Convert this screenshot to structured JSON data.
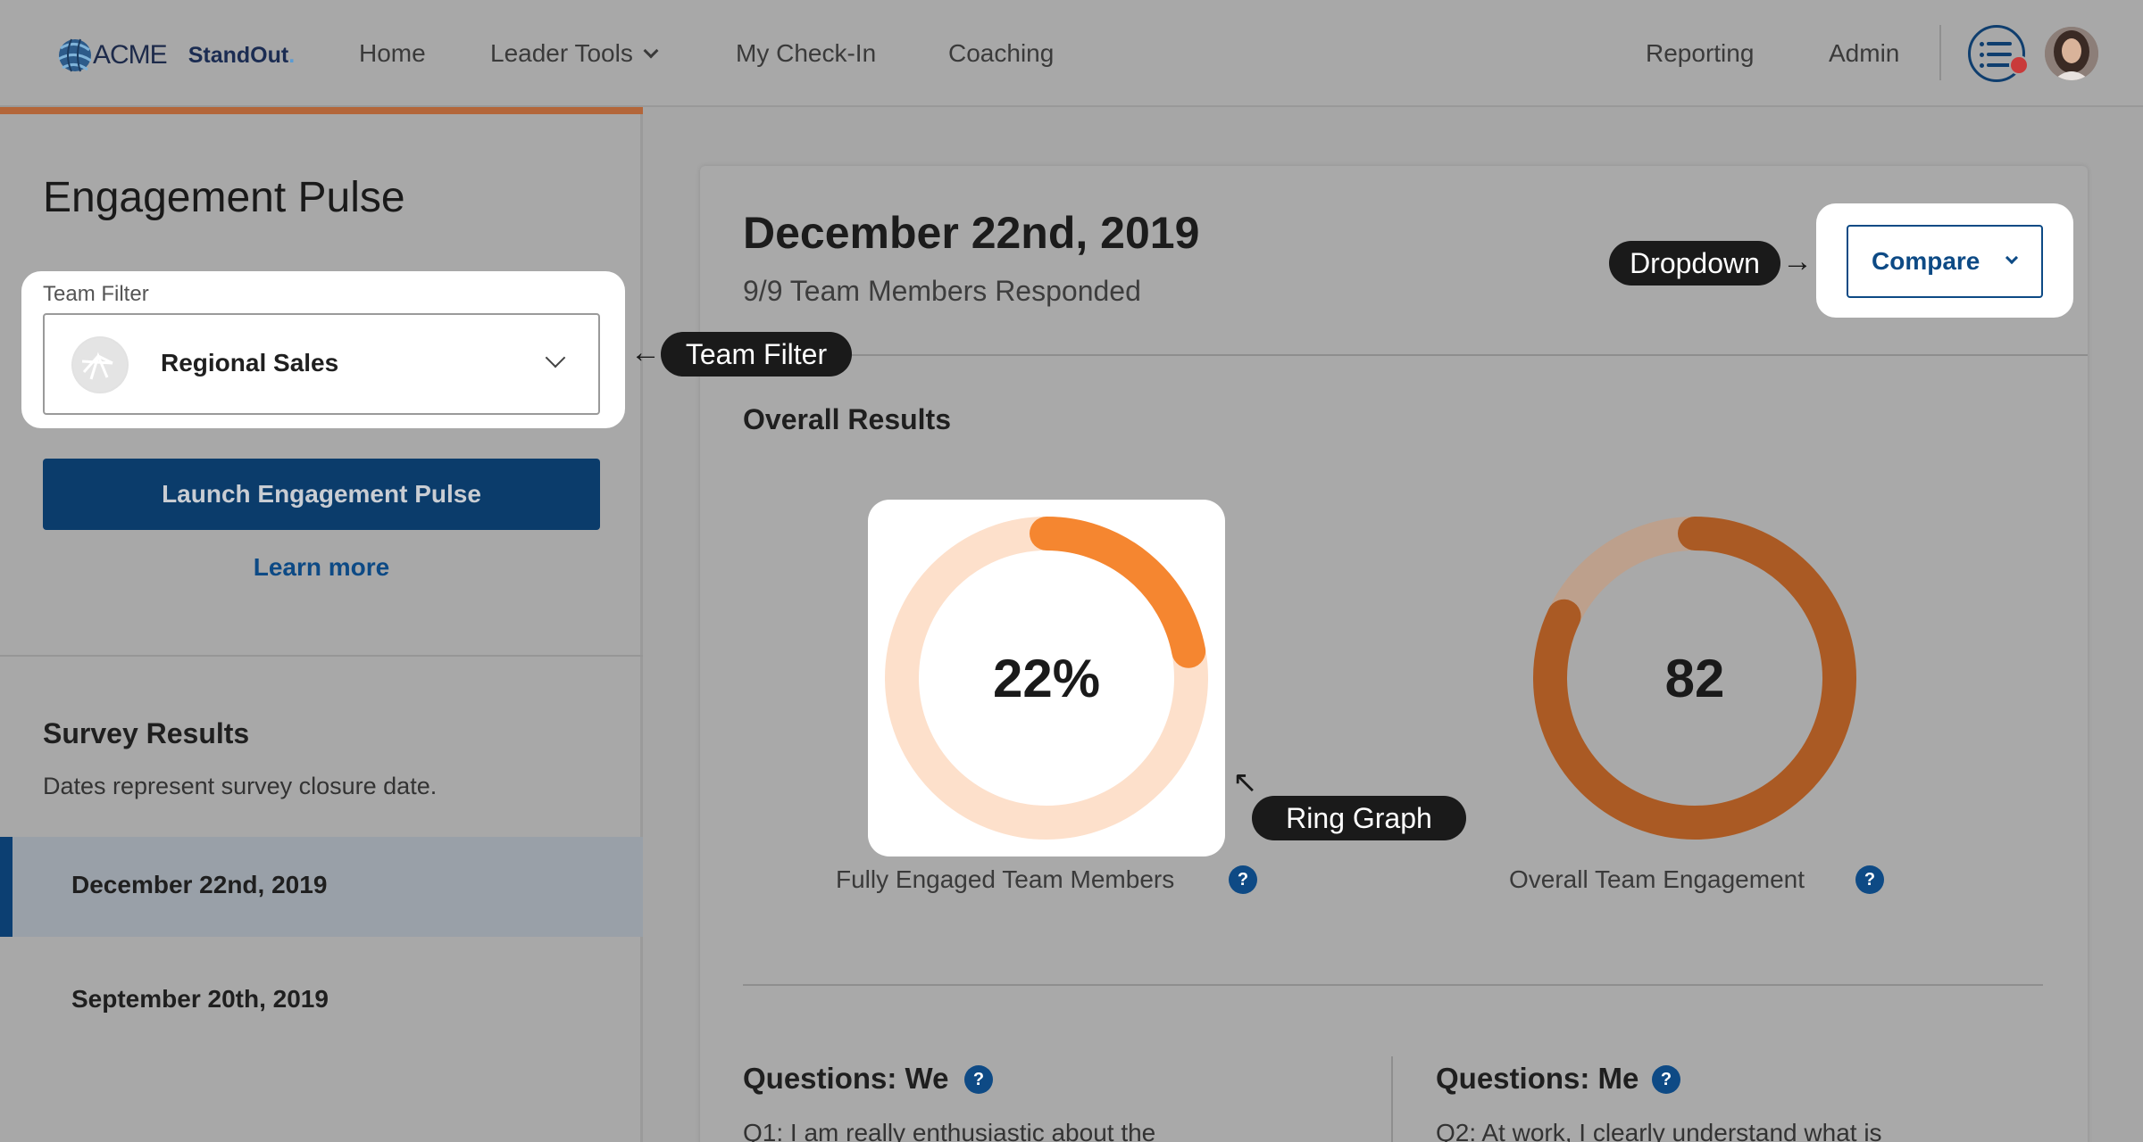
{
  "brand": {
    "acme": "ACME",
    "standout": "StandOut",
    "standout_dot": "."
  },
  "nav": {
    "items": [
      {
        "label": "Home"
      },
      {
        "label": "Leader Tools",
        "has_dropdown": true
      },
      {
        "label": "My Check-In"
      },
      {
        "label": "Coaching"
      },
      {
        "label": "Reporting"
      },
      {
        "label": "Admin"
      }
    ],
    "list_icon": "list-icon",
    "notification_color": "#c93a3a"
  },
  "sidebar": {
    "title": "Engagement Pulse",
    "team_filter": {
      "label": "Team Filter",
      "value": "Regional Sales"
    },
    "launch_label": "Launch Engagement Pulse",
    "learn_more": "Learn more",
    "survey_results": {
      "title": "Survey Results",
      "subtitle": "Dates represent survey closure date.",
      "items": [
        {
          "label": "December 22nd, 2019",
          "active": true
        },
        {
          "label": "September 20th, 2019",
          "active": false
        }
      ]
    }
  },
  "main": {
    "date_title": "December 22nd, 2019",
    "responded": "9/9 Team Members Responded",
    "compare_label": "Compare",
    "overall_title": "Overall Results",
    "rings": [
      {
        "value_text": "22%",
        "fraction": 0.22,
        "label": "Fully Engaged Team Members",
        "help": "?",
        "track_color": "#fde0cb",
        "fill_color": "#f58630"
      },
      {
        "value_text": "82",
        "fraction": 0.82,
        "label": "Overall Team Engagement",
        "help": "?",
        "track_color": "#bda08c",
        "fill_color": "#aa5a24"
      }
    ],
    "questions": [
      {
        "title": "Questions: We",
        "help": "?",
        "text": "Q1: I am really enthusiastic about the"
      },
      {
        "title": "Questions: Me",
        "help": "?",
        "text": "Q2: At work, I clearly understand what is"
      }
    ]
  },
  "callouts": {
    "team_filter": "Team Filter",
    "dropdown": "Dropdown",
    "ring_graph": "Ring Graph"
  },
  "accent_color": "#0b3c6b"
}
